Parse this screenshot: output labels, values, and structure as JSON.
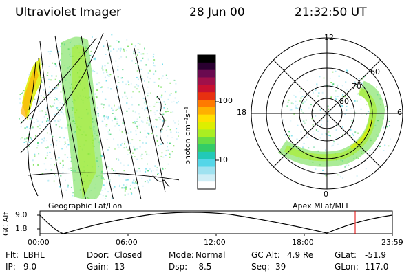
{
  "header": {
    "instrument": "Ultraviolet Imager",
    "date": "28 Jun 00",
    "time": "21:32:50 UT"
  },
  "colorbar": {
    "unit": "photon cm⁻²s⁻¹",
    "ticks": [
      "100",
      "10"
    ],
    "colors": [
      "#ffffff",
      "#cfeef6",
      "#9fe2f0",
      "#55d6e8",
      "#22c9b8",
      "#33cc66",
      "#66dd44",
      "#aaee22",
      "#ddee00",
      "#ffe000",
      "#ffb000",
      "#ff7a00",
      "#e83010",
      "#c81030",
      "#a0104a",
      "#6a0a50",
      "#2a0030",
      "#000000"
    ]
  },
  "left_panel": {
    "label": "Geographic Lat/Lon"
  },
  "right_panel": {
    "label": "Apex  MLat/MLT",
    "mlt_labels": [
      "12",
      "18",
      "6",
      "0"
    ],
    "lat_labels": [
      "80",
      "70",
      "60"
    ]
  },
  "altitude_plot": {
    "ylabel": "GC Alt",
    "yticks": [
      "9.0",
      "1.8"
    ],
    "xticks": [
      "00:00",
      "06:00",
      "12:00",
      "18:00",
      "23:59"
    ]
  },
  "status": {
    "filter_label": "Flt:",
    "filter_value": "LBHL",
    "ip_label": "IP:",
    "ip_value": "9.0",
    "door_label": "Door:",
    "door_value": "Closed",
    "gain_label": "Gain:",
    "gain_value": "13",
    "mode_label": "Mode:",
    "mode_value": "Normal",
    "dsp_label": "Dsp:",
    "dsp_value": "-8.5",
    "gcalt_label": "GC Alt:",
    "gcalt_value": "4.9 Re",
    "seq_label": "Seq:",
    "seq_value": "39",
    "glat_label": "GLat:",
    "glat_value": "-51.9",
    "glon_label": "GLon:",
    "glon_value": "117.0"
  }
}
